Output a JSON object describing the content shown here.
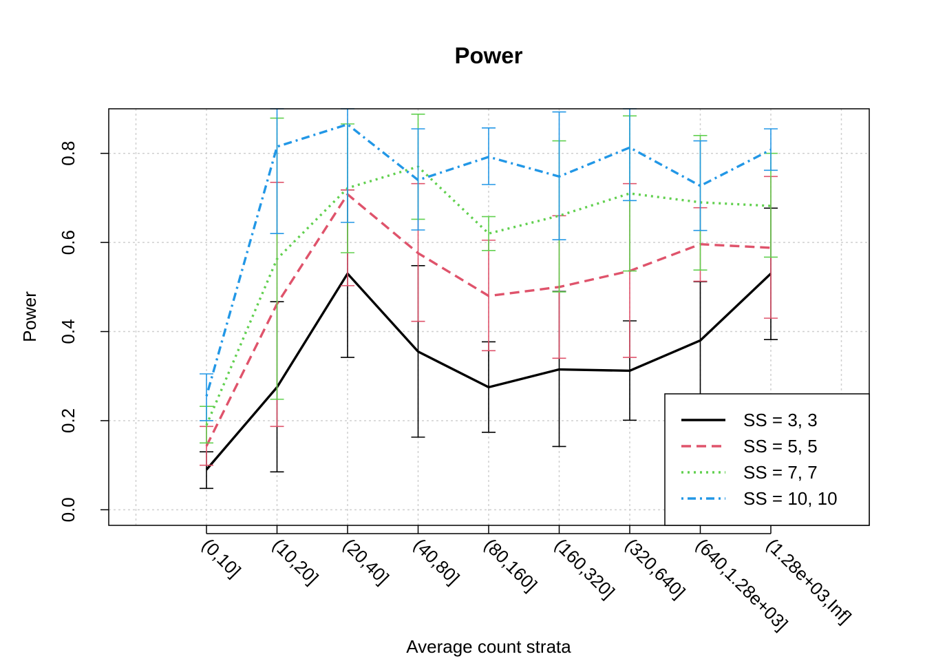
{
  "chart_data": {
    "type": "line",
    "title": "Power",
    "xlabel": "Average count strata",
    "ylabel": "Power",
    "categories": [
      "(0,10]",
      "(10,20]",
      "(20,40]",
      "(40,80]",
      "(80,160]",
      "(160,320]",
      "(320,640]",
      "(640,1.28e+03]",
      "(1.28e+03,Inf]"
    ],
    "ylim": [
      -0.035,
      0.9
    ],
    "yticks": [
      0.0,
      0.2,
      0.4,
      0.6,
      0.8
    ],
    "ytick_labels": [
      "0.0",
      "0.2",
      "0.4",
      "0.6",
      "0.8"
    ],
    "grid": true,
    "error_bars": true,
    "legend_position": "bottom-right",
    "series": [
      {
        "name": "SS = 3, 3",
        "color": "#000000",
        "dash": "solid",
        "values": [
          0.09,
          0.275,
          0.53,
          0.355,
          0.275,
          0.315,
          0.312,
          0.38,
          0.53
        ],
        "lower": [
          0.048,
          0.085,
          0.342,
          0.163,
          0.174,
          0.142,
          0.201,
          0.255,
          0.382
        ],
        "upper": [
          0.13,
          0.467,
          0.718,
          0.548,
          0.377,
          0.49,
          0.424,
          0.512,
          0.677
        ]
      },
      {
        "name": "SS = 5, 5",
        "color": "#DF536B",
        "dash": "dashed",
        "values": [
          0.143,
          0.462,
          0.708,
          0.576,
          0.48,
          0.5,
          0.536,
          0.596,
          0.588
        ],
        "lower": [
          0.1,
          0.187,
          0.503,
          0.423,
          0.357,
          0.34,
          0.342,
          0.513,
          0.43
        ],
        "upper": [
          0.187,
          0.735,
          0.718,
          0.732,
          0.605,
          0.66,
          0.732,
          0.678,
          0.748
        ]
      },
      {
        "name": "SS = 7, 7",
        "color": "#61D04F",
        "dash": "dotted",
        "values": [
          0.19,
          0.563,
          0.722,
          0.77,
          0.62,
          0.66,
          0.71,
          0.69,
          0.682
        ],
        "lower": [
          0.15,
          0.248,
          0.577,
          0.652,
          0.582,
          0.489,
          0.536,
          0.538,
          0.567
        ],
        "upper": [
          0.232,
          0.879,
          0.866,
          0.888,
          0.658,
          0.828,
          0.884,
          0.84,
          0.8
        ]
      },
      {
        "name": "SS = 10, 10",
        "color": "#2297E6",
        "dash": "dotdash",
        "values": [
          0.255,
          0.815,
          0.865,
          0.74,
          0.792,
          0.748,
          0.813,
          0.727,
          0.808
        ],
        "lower": [
          0.2,
          0.62,
          0.645,
          0.628,
          0.73,
          0.606,
          0.694,
          0.627,
          0.762
        ],
        "upper": [
          0.305,
          0.9,
          0.9,
          0.855,
          0.857,
          0.893,
          0.9,
          0.828,
          0.855
        ]
      }
    ]
  }
}
